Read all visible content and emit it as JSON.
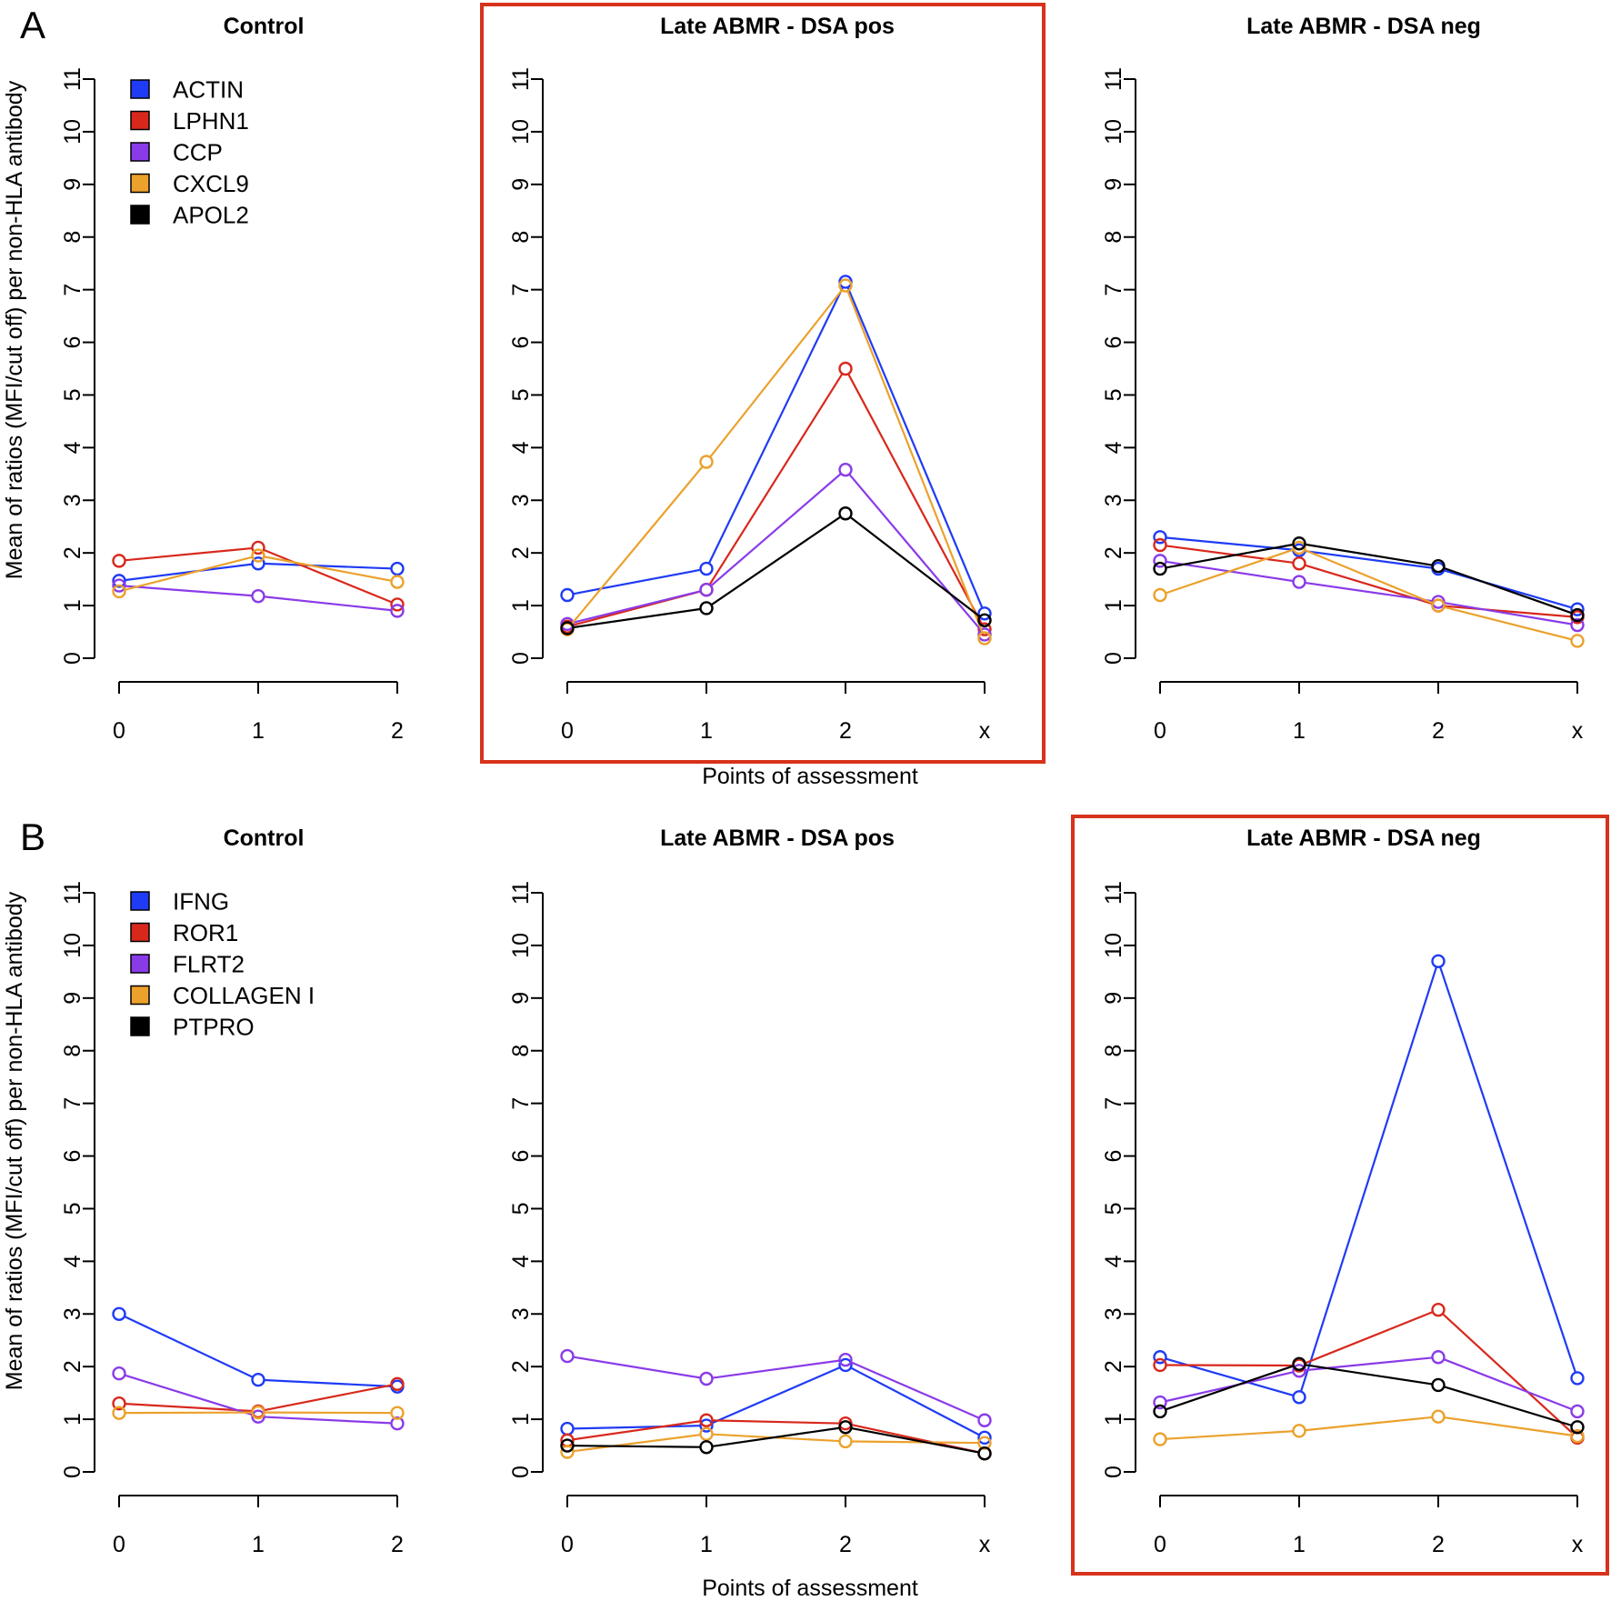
{
  "figure": {
    "ylabel": "Mean of ratios (MFI/cut off) per non-HLA antibody",
    "xlabel": "Points of assessment"
  },
  "colors": {
    "blue": "#1f3bf5",
    "red": "#d8281c",
    "purple": "#8a3be8",
    "orange": "#eba12c",
    "black": "#000000",
    "highlight": "#d7321b"
  },
  "rows": [
    {
      "letter": "A",
      "legend": [
        {
          "label": "ACTIN",
          "color": "#1f3bf5"
        },
        {
          "label": "LPHN1",
          "color": "#d8281c"
        },
        {
          "label": "CCP",
          "color": "#8a3be8"
        },
        {
          "label": "CXCL9",
          "color": "#eba12c"
        },
        {
          "label": "APOL2",
          "color": "#000000"
        }
      ]
    },
    {
      "letter": "B",
      "legend": [
        {
          "label": "IFNG",
          "color": "#1f3bf5"
        },
        {
          "label": "ROR1",
          "color": "#d8281c"
        },
        {
          "label": "FLRT2",
          "color": "#8a3be8"
        },
        {
          "label": "COLLAGEN I",
          "color": "#eba12c"
        },
        {
          "label": "PTPRO",
          "color": "#000000"
        }
      ]
    }
  ],
  "chart_data": [
    {
      "type": "line",
      "panel": "A",
      "title": "Control",
      "highlighted": false,
      "categories": [
        "0",
        "1",
        "2"
      ],
      "ylim": [
        0,
        11
      ],
      "yticks": [
        "0",
        "1",
        "2",
        "3",
        "4",
        "5",
        "6",
        "7",
        "8",
        "9",
        "10",
        "11"
      ],
      "series": [
        {
          "name": "ACTIN",
          "color": "#1f3bf5",
          "values": [
            1.47,
            1.8,
            1.7
          ]
        },
        {
          "name": "LPHN1",
          "color": "#d8281c",
          "values": [
            1.85,
            2.1,
            1.02
          ]
        },
        {
          "name": "CCP",
          "color": "#8a3be8",
          "values": [
            1.38,
            1.18,
            0.9
          ]
        },
        {
          "name": "CXCL9",
          "color": "#eba12c",
          "values": [
            1.27,
            1.95,
            1.45
          ]
        }
      ]
    },
    {
      "type": "line",
      "panel": "A",
      "title": "Late ABMR - DSA pos",
      "highlighted": true,
      "categories": [
        "0",
        "1",
        "2",
        "x"
      ],
      "ylim": [
        0,
        11
      ],
      "yticks": [
        "0",
        "1",
        "2",
        "3",
        "4",
        "5",
        "6",
        "7",
        "8",
        "9",
        "10",
        "11"
      ],
      "series": [
        {
          "name": "ACTIN",
          "color": "#1f3bf5",
          "values": [
            1.2,
            1.7,
            7.15,
            0.85
          ]
        },
        {
          "name": "LPHN1",
          "color": "#d8281c",
          "values": [
            0.6,
            1.3,
            5.5,
            0.55
          ]
        },
        {
          "name": "CCP",
          "color": "#8a3be8",
          "values": [
            0.65,
            1.3,
            3.58,
            0.45
          ]
        },
        {
          "name": "CXCL9",
          "color": "#eba12c",
          "values": [
            0.55,
            3.73,
            7.08,
            0.38
          ]
        },
        {
          "name": "APOL2",
          "color": "#000000",
          "values": [
            0.57,
            0.95,
            2.75,
            0.72
          ]
        }
      ]
    },
    {
      "type": "line",
      "panel": "A",
      "title": "Late ABMR - DSA neg",
      "highlighted": false,
      "categories": [
        "0",
        "1",
        "2",
        "x"
      ],
      "ylim": [
        0,
        11
      ],
      "yticks": [
        "0",
        "1",
        "2",
        "3",
        "4",
        "5",
        "6",
        "7",
        "8",
        "9",
        "10",
        "11"
      ],
      "series": [
        {
          "name": "ACTIN",
          "color": "#1f3bf5",
          "values": [
            2.3,
            2.05,
            1.7,
            0.93
          ]
        },
        {
          "name": "LPHN1",
          "color": "#d8281c",
          "values": [
            2.15,
            1.8,
            1.0,
            0.78
          ]
        },
        {
          "name": "CCP",
          "color": "#8a3be8",
          "values": [
            1.85,
            1.45,
            1.07,
            0.63
          ]
        },
        {
          "name": "CXCL9",
          "color": "#eba12c",
          "values": [
            1.2,
            2.1,
            1.0,
            0.33
          ]
        },
        {
          "name": "APOL2",
          "color": "#000000",
          "values": [
            1.7,
            2.18,
            1.75,
            0.82
          ]
        }
      ]
    },
    {
      "type": "line",
      "panel": "B",
      "title": "Control",
      "highlighted": false,
      "categories": [
        "0",
        "1",
        "2"
      ],
      "ylim": [
        0,
        11
      ],
      "yticks": [
        "0",
        "1",
        "2",
        "3",
        "4",
        "5",
        "6",
        "7",
        "8",
        "9",
        "10",
        "11"
      ],
      "series": [
        {
          "name": "IFNG",
          "color": "#1f3bf5",
          "values": [
            3.0,
            1.75,
            1.62
          ]
        },
        {
          "name": "ROR1",
          "color": "#d8281c",
          "values": [
            1.3,
            1.15,
            1.67
          ]
        },
        {
          "name": "FLRT2",
          "color": "#8a3be8",
          "values": [
            1.87,
            1.05,
            0.92
          ]
        },
        {
          "name": "COLLAGEN I",
          "color": "#eba12c",
          "values": [
            1.12,
            1.13,
            1.12
          ]
        }
      ]
    },
    {
      "type": "line",
      "panel": "B",
      "title": "Late ABMR - DSA pos",
      "highlighted": false,
      "categories": [
        "0",
        "1",
        "2",
        "x"
      ],
      "ylim": [
        0,
        11
      ],
      "yticks": [
        "0",
        "1",
        "2",
        "3",
        "4",
        "5",
        "6",
        "7",
        "8",
        "9",
        "10",
        "11"
      ],
      "series": [
        {
          "name": "IFNG",
          "color": "#1f3bf5",
          "values": [
            0.82,
            0.88,
            2.03,
            0.65
          ]
        },
        {
          "name": "ROR1",
          "color": "#d8281c",
          "values": [
            0.6,
            0.98,
            0.92,
            0.35
          ]
        },
        {
          "name": "FLRT2",
          "color": "#8a3be8",
          "values": [
            2.2,
            1.77,
            2.13,
            0.98
          ]
        },
        {
          "name": "COLLAGEN I",
          "color": "#eba12c",
          "values": [
            0.38,
            0.72,
            0.58,
            0.55
          ]
        },
        {
          "name": "PTPRO",
          "color": "#000000",
          "values": [
            0.5,
            0.47,
            0.85,
            0.35
          ]
        }
      ]
    },
    {
      "type": "line",
      "panel": "B",
      "title": "Late ABMR - DSA neg",
      "highlighted": true,
      "categories": [
        "0",
        "1",
        "2",
        "x"
      ],
      "ylim": [
        0,
        11
      ],
      "yticks": [
        "0",
        "1",
        "2",
        "3",
        "4",
        "5",
        "6",
        "7",
        "8",
        "9",
        "10",
        "11"
      ],
      "series": [
        {
          "name": "IFNG",
          "color": "#1f3bf5",
          "values": [
            2.18,
            1.42,
            9.7,
            1.78
          ]
        },
        {
          "name": "ROR1",
          "color": "#d8281c",
          "values": [
            2.03,
            2.02,
            3.08,
            0.65
          ]
        },
        {
          "name": "FLRT2",
          "color": "#8a3be8",
          "values": [
            1.32,
            1.92,
            2.18,
            1.15
          ]
        },
        {
          "name": "COLLAGEN I",
          "color": "#eba12c",
          "values": [
            0.62,
            0.78,
            1.05,
            0.68
          ]
        },
        {
          "name": "PTPRO",
          "color": "#000000",
          "values": [
            1.15,
            2.05,
            1.65,
            0.85
          ]
        }
      ]
    }
  ]
}
